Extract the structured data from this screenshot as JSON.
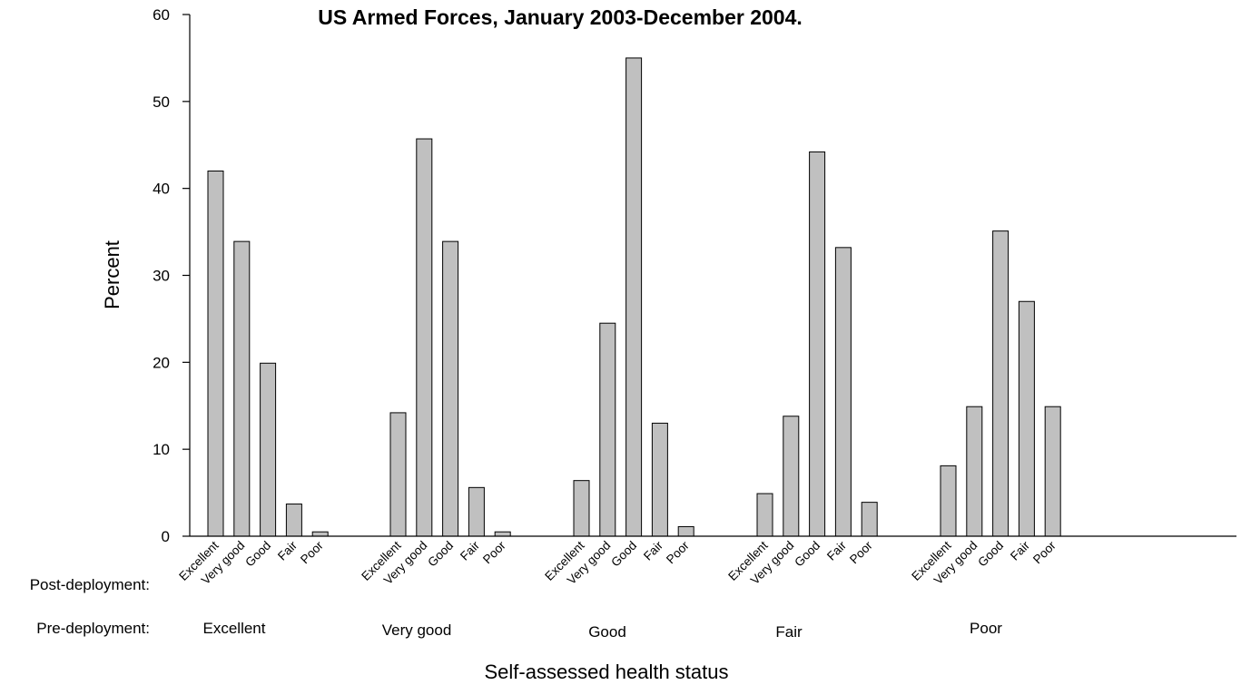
{
  "chart_data": {
    "type": "bar",
    "title": "US Armed Forces, January 2003-December 2004.",
    "ylabel": "Percent",
    "xlabel": "Self-assessed health status",
    "ylim": [
      0,
      60
    ],
    "yticks": [
      0,
      10,
      20,
      30,
      40,
      50,
      60
    ],
    "grid": false,
    "row_labels": {
      "post": "Post-deployment:",
      "pre": "Pre-deployment:"
    },
    "groups": [
      {
        "pre": "Excellent",
        "categories": [
          "Excellent",
          "Very good",
          "Good",
          "Fair",
          "Poor"
        ],
        "values": [
          42.0,
          33.9,
          19.9,
          3.7,
          0.5
        ]
      },
      {
        "pre": "Very good",
        "categories": [
          "Excellent",
          "Very good",
          "Good",
          "Fair",
          "Poor"
        ],
        "values": [
          14.2,
          45.7,
          33.9,
          5.6,
          0.5
        ]
      },
      {
        "pre": "Good",
        "categories": [
          "Excellent",
          "Very good",
          "Good",
          "Fair",
          "Poor"
        ],
        "values": [
          6.4,
          24.5,
          55.0,
          13.0,
          1.1
        ]
      },
      {
        "pre": "Fair",
        "categories": [
          "Excellent",
          "Very good",
          "Good",
          "Fair",
          "Poor"
        ],
        "values": [
          4.9,
          13.8,
          44.2,
          33.2,
          3.9
        ]
      },
      {
        "pre": "Poor",
        "categories": [
          "Excellent",
          "Very good",
          "Good",
          "Fair",
          "Poor"
        ],
        "values": [
          8.1,
          14.9,
          35.1,
          27.0,
          14.9
        ]
      }
    ]
  }
}
